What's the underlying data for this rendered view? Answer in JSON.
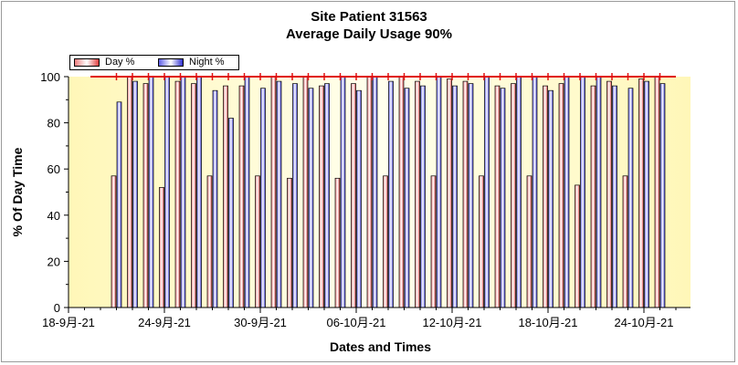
{
  "chart_data": {
    "type": "bar",
    "title": "Site Patient 31563",
    "subtitle": "Average Daily Usage 90%",
    "xlabel": "Dates and Times",
    "ylabel": "% Of Day Time",
    "ylim": [
      0,
      100
    ],
    "y_ticks": [
      "0",
      "20",
      "40",
      "60",
      "80",
      "100"
    ],
    "x_tick_labels": [
      "18-9月-21",
      "24-9月-21",
      "30-9月-21",
      "06-10月-21",
      "12-10月-21",
      "18-10月-21",
      "24-10月-21"
    ],
    "threshold_line": 100,
    "grid": false,
    "legend_position": "top-left",
    "series": [
      {
        "name": "Day %",
        "color": "#e02020",
        "values": [
          57,
          100,
          97,
          52,
          98,
          97,
          57,
          96,
          96,
          57,
          100,
          56,
          100,
          96,
          56,
          97,
          100,
          57,
          100,
          98,
          57,
          99,
          98,
          57,
          96,
          97,
          57,
          96,
          97,
          53,
          96,
          98,
          57,
          99,
          100
        ]
      },
      {
        "name": "Night %",
        "color": "#2020e0",
        "values": [
          89,
          98,
          100,
          100,
          100,
          100,
          94,
          82,
          100,
          95,
          98,
          97,
          95,
          97,
          100,
          94,
          100,
          98,
          95,
          96,
          100,
          96,
          97,
          100,
          95,
          100,
          100,
          94,
          100,
          100,
          100,
          96,
          95,
          98,
          97
        ]
      }
    ]
  }
}
